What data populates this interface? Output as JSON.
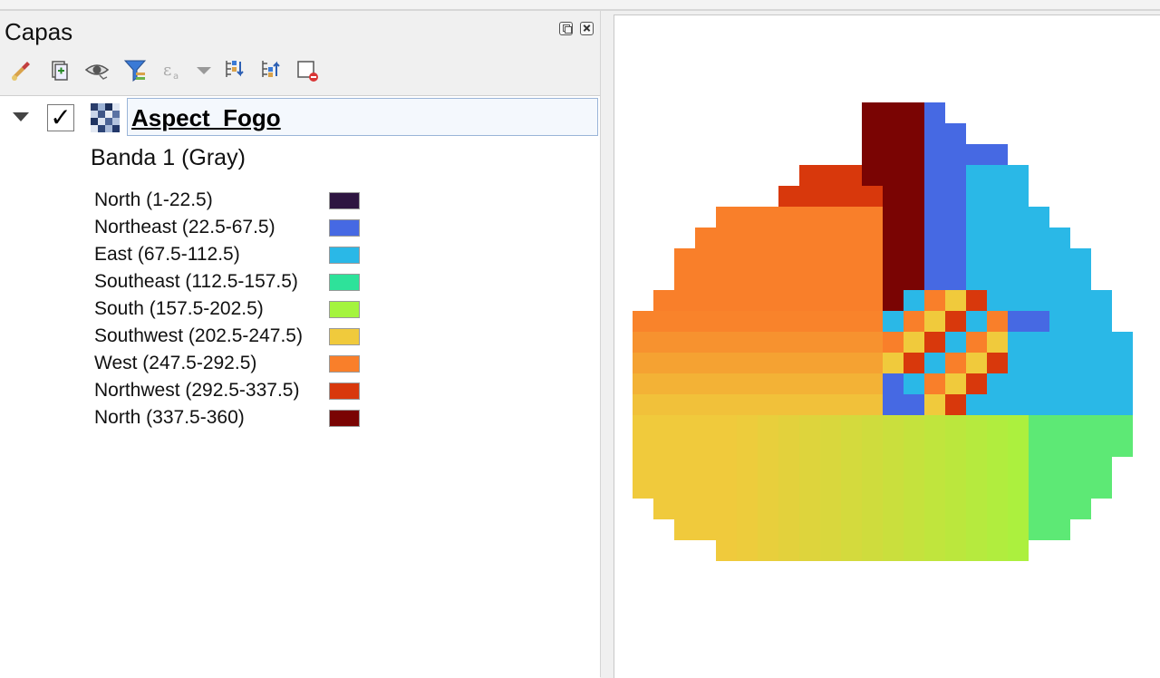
{
  "panel": {
    "title": "Capas",
    "toolbar": [
      {
        "name": "open-styling-panel-icon"
      },
      {
        "name": "add-group-icon"
      },
      {
        "name": "manage-map-themes-icon"
      },
      {
        "name": "filter-legend-icon"
      },
      {
        "name": "filter-by-expression-icon"
      },
      {
        "name": "expand-all-icon"
      },
      {
        "name": "collapse-all-icon"
      },
      {
        "name": "remove-layer-icon"
      }
    ]
  },
  "layer": {
    "name": "Aspect_Fogo",
    "checked": true,
    "check_mark": "✓",
    "band": "Banda 1 (Gray)",
    "legend": [
      {
        "label": "North (1-22.5)",
        "color": "#2e1541"
      },
      {
        "label": "Northeast (22.5-67.5)",
        "color": "#4669e3"
      },
      {
        "label": "East (67.5-112.5)",
        "color": "#2ab8e7"
      },
      {
        "label": "Southeast (112.5-157.5)",
        "color": "#2ee29a"
      },
      {
        "label": "South (157.5-202.5)",
        "color": "#a4f43e"
      },
      {
        "label": "Southwest (202.5-247.5)",
        "color": "#f0ca3c"
      },
      {
        "label": "West (247.5-292.5)",
        "color": "#f97f2a"
      },
      {
        "label": "Northwest (292.5-337.5)",
        "color": "#d8380c"
      },
      {
        "label": "North (337.5-360)",
        "color": "#7a0403"
      }
    ]
  }
}
